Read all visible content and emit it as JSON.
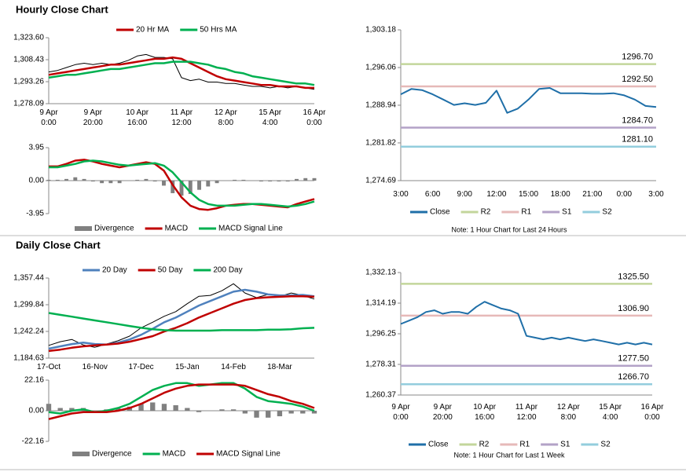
{
  "chart_data": [
    {
      "type": "line",
      "title": "Hourly Close Chart",
      "categories": [
        "9 Apr\n0:00",
        null,
        null,
        null,
        null,
        "9 Apr\n20:00",
        null,
        null,
        null,
        null,
        "10 Apr\n16:00",
        null,
        null,
        null,
        null,
        "11 Apr\n12:00",
        null,
        null,
        null,
        null,
        "12 Apr\n8:00",
        null,
        null,
        null,
        null,
        "15 Apr\n4:00",
        null,
        null,
        null,
        null,
        "16 Apr\n0:00"
      ],
      "ylim": [
        1278.09,
        1323.6
      ],
      "yticks": [
        {
          "value": 1323.6,
          "label": "1,323.60"
        },
        {
          "value": 1308.43,
          "label": "1,308.43"
        },
        {
          "value": 1293.26,
          "label": "1,293.26"
        },
        {
          "value": 1278.09,
          "label": "1,278.09"
        }
      ],
      "series": [
        {
          "color": "#000000",
          "values": [
            1300,
            1301,
            1303,
            1305,
            1306,
            1305,
            1306,
            1305,
            1306,
            1308,
            1311,
            1312,
            1310,
            1310,
            1309,
            1296,
            1294,
            1295,
            1293,
            1293,
            1292,
            1292,
            1291,
            1290,
            1290,
            1289,
            1290,
            1289,
            1290,
            1289,
            1288
          ]
        },
        {
          "name": "20 Hr MA",
          "color": "#c00000",
          "values": [
            1298,
            1299,
            1300,
            1301,
            1302,
            1303,
            1304,
            1305,
            1305,
            1306,
            1307,
            1308,
            1309,
            1309,
            1310,
            1309,
            1306,
            1303,
            1300,
            1297,
            1295,
            1294,
            1293,
            1292,
            1291,
            1291,
            1290,
            1290,
            1290,
            1289,
            1289
          ]
        },
        {
          "name": "50 Hrs MA",
          "color": "#00b050",
          "values": [
            1296,
            1297,
            1298,
            1298,
            1299,
            1300,
            1301,
            1302,
            1302,
            1303,
            1304,
            1305,
            1306,
            1306,
            1307,
            1307,
            1307,
            1306,
            1305,
            1303,
            1302,
            1300,
            1299,
            1297,
            1296,
            1295,
            1294,
            1293,
            1292,
            1292,
            1291
          ]
        }
      ]
    },
    {
      "type": "combo",
      "ylim": [
        -3.95,
        3.95
      ],
      "yticks": [
        3.95,
        {
          "value": 0,
          "label": "0.00"
        },
        -3.95
      ],
      "series": [
        {
          "name": "Divergence",
          "kind": "bar",
          "color": "#808080",
          "values": [
            0.1,
            0.1,
            0.2,
            0.4,
            0.2,
            -0.1,
            -0.3,
            -0.3,
            -0.3,
            0,
            0.1,
            0.2,
            -0.1,
            -0.6,
            -1.5,
            -1.8,
            -1.6,
            -1.1,
            -0.7,
            -0.3,
            0,
            0.1,
            0.1,
            0,
            -0.1,
            -0.1,
            -0.1,
            -0.1,
            0.2,
            0.3,
            0.3
          ]
        },
        {
          "name": "MACD",
          "kind": "line",
          "color": "#c00000",
          "values": [
            1.7,
            1.7,
            2.0,
            2.4,
            2.5,
            2.3,
            2.0,
            1.8,
            1.6,
            1.8,
            2.0,
            2.2,
            2.0,
            1.2,
            -0.5,
            -2.0,
            -3.0,
            -3.4,
            -3.5,
            -3.3,
            -3.0,
            -2.9,
            -2.8,
            -2.8,
            -2.9,
            -3.0,
            -3.1,
            -3.2,
            -2.8,
            -2.5,
            -2.2
          ]
        },
        {
          "name": "MACD Signal Line",
          "kind": "line",
          "color": "#00b050",
          "values": [
            1.6,
            1.6,
            1.8,
            2.0,
            2.3,
            2.4,
            2.3,
            2.1,
            1.9,
            1.8,
            1.9,
            2.0,
            2.1,
            1.8,
            1.0,
            -0.2,
            -1.4,
            -2.3,
            -2.8,
            -3.0,
            -3.0,
            -3.0,
            -2.9,
            -2.8,
            -2.8,
            -2.9,
            -3.0,
            -3.1,
            -3.0,
            -2.8,
            -2.5
          ]
        }
      ]
    },
    {
      "type": "line",
      "note": "Note: 1 Hour Chart for Last 24 Hours",
      "categories": [
        "3:00",
        null,
        null,
        "6:00",
        null,
        null,
        "9:00",
        null,
        null,
        "12:00",
        null,
        null,
        "15:00",
        null,
        null,
        "18:00",
        null,
        null,
        "21:00",
        null,
        null,
        "0:00",
        null,
        null,
        "3:00"
      ],
      "ylim": [
        1274.69,
        1303.18
      ],
      "yticks": [
        {
          "value": 1303.18,
          "label": "1,303.18"
        },
        {
          "value": 1296.06,
          "label": "1,296.06"
        },
        {
          "value": 1288.94,
          "label": "1,288.94"
        },
        {
          "value": 1281.82,
          "label": "1,281.82"
        },
        {
          "value": 1274.69,
          "label": "1,274.69"
        }
      ],
      "series": [
        {
          "name": "Close",
          "color": "#1f6fa8",
          "values": [
            1291,
            1292,
            1291.8,
            1291,
            1290,
            1289,
            1289.3,
            1289,
            1289.4,
            1291.7,
            1287.5,
            1288.3,
            1290,
            1292,
            1292.2,
            1291.2,
            1291.2,
            1291.2,
            1291.1,
            1291.1,
            1291.2,
            1290.8,
            1290,
            1288.8,
            1288.6
          ]
        }
      ],
      "levels": [
        {
          "name": "R2",
          "color": "#c3d69b",
          "value": 1296.7,
          "label": "1296.70"
        },
        {
          "name": "R1",
          "color": "#e6b9b8",
          "value": 1292.5,
          "label": "1292.50"
        },
        {
          "name": "S1",
          "color": "#b3a2c7",
          "value": 1284.7,
          "label": "1284.70"
        },
        {
          "name": "S2",
          "color": "#93cddd",
          "value": 1281.1,
          "label": "1281.10"
        }
      ]
    },
    {
      "type": "line",
      "title": "Daily Close Chart",
      "categories": [
        "17-Oct",
        null,
        null,
        null,
        "16-Nov",
        null,
        null,
        null,
        "17-Dec",
        null,
        null,
        null,
        "15-Jan",
        null,
        null,
        null,
        "14-Feb",
        null,
        null,
        null,
        "18-Mar",
        null,
        null,
        null
      ],
      "ylim": [
        1184.63,
        1357.44
      ],
      "yticks": [
        {
          "value": 1357.44,
          "label": "1,357.44"
        },
        {
          "value": 1299.84,
          "label": "1,299.84"
        },
        {
          "value": 1242.24,
          "label": "1,242.24"
        },
        {
          "value": 1184.63,
          "label": "1,184.63"
        }
      ],
      "series": [
        {
          "color": "#000000",
          "values": [
            1212,
            1220,
            1225,
            1213,
            1208,
            1215,
            1222,
            1232,
            1250,
            1262,
            1275,
            1285,
            1302,
            1318,
            1320,
            1330,
            1345,
            1325,
            1315,
            1322,
            1318,
            1325,
            1320,
            1312
          ]
        },
        {
          "name": "20 Day",
          "color": "#4f81bd",
          "values": [
            1205,
            1210,
            1215,
            1218,
            1215,
            1214,
            1218,
            1225,
            1235,
            1248,
            1262,
            1272,
            1285,
            1298,
            1308,
            1318,
            1328,
            1332,
            1328,
            1322,
            1320,
            1320,
            1321,
            1318
          ]
        },
        {
          "name": "50 Day",
          "color": "#c00000",
          "values": [
            1200,
            1203,
            1207,
            1210,
            1212,
            1214,
            1216,
            1220,
            1226,
            1232,
            1242,
            1250,
            1260,
            1272,
            1282,
            1292,
            1302,
            1310,
            1314,
            1316,
            1317,
            1318,
            1318,
            1317
          ]
        },
        {
          "name": "200 Day",
          "color": "#00b050",
          "values": [
            1282,
            1278,
            1274,
            1270,
            1266,
            1262,
            1258,
            1254,
            1250,
            1247,
            1245,
            1244,
            1244,
            1244,
            1244,
            1245,
            1245,
            1245,
            1245,
            1246,
            1246,
            1247,
            1249,
            1250
          ]
        }
      ]
    },
    {
      "type": "combo",
      "ylim": [
        -22.16,
        22.16
      ],
      "yticks": [
        22.16,
        {
          "value": 0,
          "label": "0.00"
        },
        -22.16
      ],
      "series": [
        {
          "name": "Divergence",
          "kind": "bar",
          "color": "#808080",
          "values": [
            5,
            2,
            2,
            2,
            0,
            1,
            2,
            3,
            5,
            6,
            5,
            4,
            2,
            -1,
            0,
            1,
            1,
            -2,
            -5,
            -5,
            -4,
            -2,
            -2,
            -2
          ]
        },
        {
          "name": "MACD",
          "kind": "line",
          "color": "#00b050",
          "values": [
            -1,
            -2,
            0,
            1,
            -1,
            0,
            2,
            5,
            10,
            15,
            18,
            20,
            20,
            18,
            19,
            20,
            20,
            16,
            10,
            7,
            6,
            5,
            3,
            0
          ]
        },
        {
          "name": "MACD Signal Line",
          "kind": "line",
          "color": "#c00000",
          "values": [
            -6,
            -4,
            -2,
            -1,
            -1,
            -1,
            0,
            2,
            5,
            9,
            13,
            16,
            18,
            19,
            19,
            19,
            19,
            18,
            15,
            12,
            10,
            7,
            5,
            2
          ]
        }
      ]
    },
    {
      "type": "line",
      "note": "Note: 1 Hour Chart for Last 1 Week",
      "categories": [
        "9 Apr\n0:00",
        null,
        null,
        null,
        null,
        "9 Apr\n20:00",
        null,
        null,
        null,
        null,
        "10 Apr\n16:00",
        null,
        null,
        null,
        null,
        "11 Apr\n12:00",
        null,
        null,
        null,
        null,
        "12 Apr\n8:00",
        null,
        null,
        null,
        null,
        "15 Apr\n4:00",
        null,
        null,
        null,
        null,
        "16 Apr\n0:00"
      ],
      "ylim": [
        1260.37,
        1332.13
      ],
      "yticks": [
        {
          "value": 1332.13,
          "label": "1,332.13"
        },
        {
          "value": 1314.19,
          "label": "1,314.19"
        },
        {
          "value": 1296.25,
          "label": "1,296.25"
        },
        {
          "value": 1278.31,
          "label": "1,278.31"
        },
        {
          "value": 1260.37,
          "label": "1,260.37"
        }
      ],
      "series": [
        {
          "name": "Close",
          "color": "#1f6fa8",
          "values": [
            1302,
            1304,
            1306,
            1309,
            1310,
            1308,
            1309,
            1309,
            1308,
            1312,
            1315,
            1313,
            1311,
            1310,
            1308,
            1295,
            1294,
            1293,
            1294,
            1293,
            1294,
            1293,
            1292,
            1293,
            1292,
            1291,
            1290,
            1291,
            1290,
            1291,
            1290
          ]
        }
      ],
      "levels": [
        {
          "name": "R2",
          "color": "#c3d69b",
          "value": 1325.5,
          "label": "1325.50"
        },
        {
          "name": "R1",
          "color": "#e6b9b8",
          "value": 1306.9,
          "label": "1306.90"
        },
        {
          "name": "S1",
          "color": "#b3a2c7",
          "value": 1277.5,
          "label": "1277.50"
        },
        {
          "name": "S2",
          "color": "#93cddd",
          "value": 1266.7,
          "label": "1266.70"
        }
      ]
    }
  ]
}
